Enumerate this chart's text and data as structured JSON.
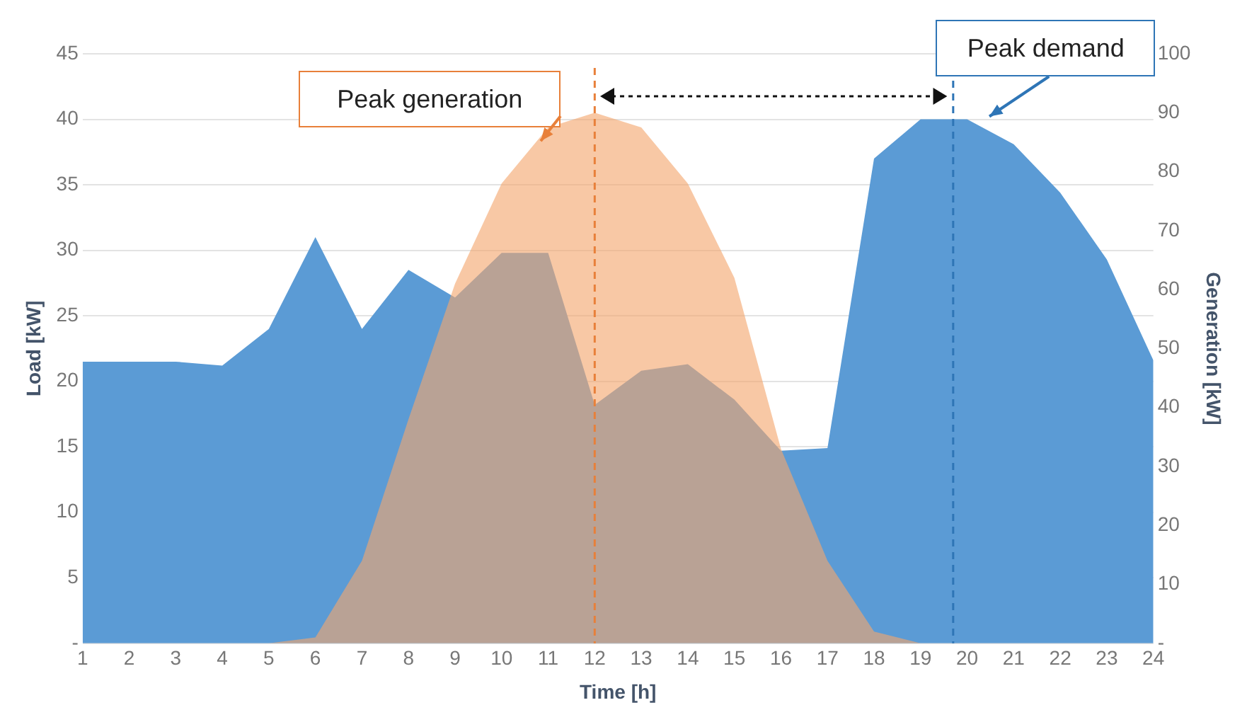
{
  "chart_data": {
    "type": "area",
    "xlabel": "Time [h]",
    "ylabel": "Load [kW]",
    "y2label": "Generation [kW]",
    "x": [
      1,
      2,
      3,
      4,
      5,
      6,
      7,
      8,
      9,
      10,
      11,
      12,
      13,
      14,
      15,
      16,
      17,
      18,
      19,
      20,
      21,
      22,
      23,
      24
    ],
    "xlim": [
      1,
      24
    ],
    "xticks": [
      1,
      2,
      3,
      4,
      5,
      6,
      7,
      8,
      9,
      10,
      11,
      12,
      13,
      14,
      15,
      16,
      17,
      18,
      19,
      20,
      21,
      22,
      23,
      24
    ],
    "ylim": [
      0,
      45
    ],
    "yticks": [
      {
        "value": 0,
        "label": "-"
      },
      5,
      10,
      15,
      20,
      25,
      30,
      35,
      40,
      45
    ],
    "y2lim": [
      0,
      100
    ],
    "y2ticks": [
      {
        "value": 0,
        "label": "-"
      },
      10,
      20,
      30,
      40,
      50,
      60,
      70,
      80,
      90,
      100
    ],
    "series": [
      {
        "color": "#5b9bd5",
        "values": [
          21.5,
          21.5,
          21.5,
          21.2,
          24,
          31,
          24,
          28.5,
          26.4,
          29.8,
          29.8,
          18.2,
          20.8,
          21.3,
          18.6,
          14.7,
          14.9,
          37,
          40,
          40,
          38.1,
          34.4,
          29.3,
          21.6
        ]
      },
      {
        "color": "#f4a66e",
        "axis": "y2",
        "values": [
          0,
          0,
          0,
          0,
          0,
          1,
          14,
          38,
          61,
          78,
          87.5,
          90,
          87.5,
          78,
          62,
          33,
          14,
          2,
          0,
          0,
          0,
          0,
          0,
          0
        ]
      }
    ],
    "ref_lines": [
      {
        "axis": "x",
        "value": 12,
        "label": "Peak generation",
        "color": "#e8803a",
        "line_style": "dashed"
      },
      {
        "axis": "x",
        "value": 19.7,
        "label": "Peak demand",
        "color": "#2e75b6",
        "line_style": "dashed"
      }
    ],
    "grid": "y"
  }
}
